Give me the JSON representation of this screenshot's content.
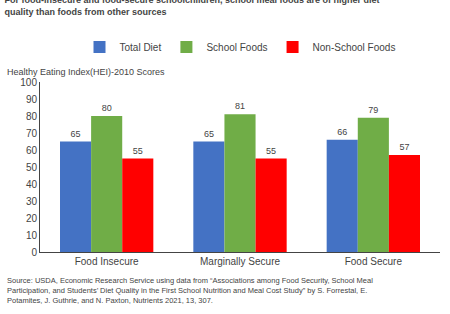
{
  "chart_data": {
    "type": "bar",
    "title": "For food-insecure and food-secure schoolchildren, school meal foods are of higher diet\nquality than foods from other sources",
    "ylabel": "Healthy Eating Index(HEI)-2010 Scores",
    "annotations": [
      "Source: USDA, Economic Research Service using data from “Associations among Food Security, School Meal\nParticipation, and Students’ Diet Quality in the First School Nutrition and Meal Cost Study” by S. Forrestal, E.\nPotamites, J. Guthrie, and N. Paxton, Nutrients 2021, 13, 307."
    ],
    "categories": [
      "Food Insecure",
      "Marginally Secure",
      "Food Secure"
    ],
    "series": [
      {
        "name": "Total Diet",
        "color": "#4472C4",
        "values": [
          65,
          65,
          66
        ]
      },
      {
        "name": "School Foods",
        "color": "#70AD47",
        "values": [
          80,
          81,
          79
        ]
      },
      {
        "name": "Non-School Foods",
        "color": "#FF0000",
        "values": [
          55,
          55,
          57
        ]
      }
    ],
    "ylim": [
      0,
      100
    ],
    "yticks": [
      0,
      10,
      20,
      30,
      40,
      50,
      60,
      70,
      80,
      90,
      100
    ],
    "grid": false,
    "legend": "top",
    "data_labels": true
  }
}
